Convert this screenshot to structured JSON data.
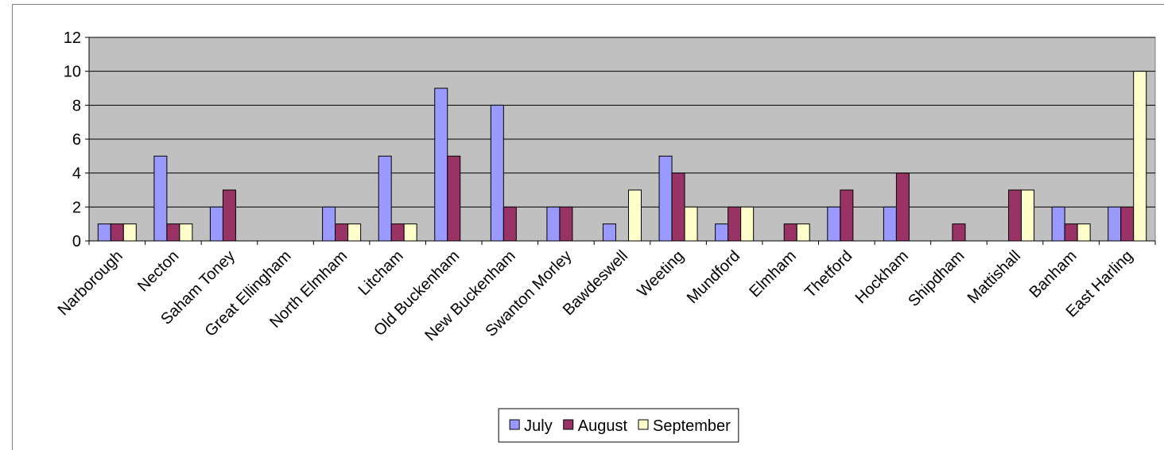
{
  "chart_data": {
    "type": "bar",
    "categories": [
      "Narborough",
      "Necton",
      "Saham Toney",
      "Great Ellingham",
      "North Elmham",
      "Litcham",
      "Old Buckenham",
      "New Buckenham",
      "Swanton Morley",
      "Bawdeswell",
      "Weeting",
      "Mundford",
      "Elmham",
      "Thetford",
      "Hockham",
      "Shipdham",
      "Mattishall",
      "Banham",
      "East Harling"
    ],
    "series": [
      {
        "name": "July",
        "color": "#9999ff",
        "values": [
          1,
          5,
          2,
          0,
          2,
          5,
          9,
          8,
          2,
          1,
          5,
          1,
          0,
          2,
          2,
          0,
          0,
          2,
          2
        ]
      },
      {
        "name": "August",
        "color": "#993366",
        "values": [
          1,
          1,
          3,
          0,
          1,
          1,
          5,
          2,
          2,
          0,
          4,
          2,
          1,
          3,
          4,
          1,
          3,
          1,
          2
        ]
      },
      {
        "name": "September",
        "color": "#ffffcc",
        "values": [
          1,
          1,
          0,
          0,
          1,
          1,
          0,
          0,
          0,
          3,
          2,
          2,
          1,
          0,
          0,
          0,
          3,
          1,
          10
        ]
      }
    ],
    "ylim": [
      0,
      12
    ],
    "yticks": [
      0,
      2,
      4,
      6,
      8,
      10,
      12
    ],
    "grid": true,
    "legend": "bottom"
  }
}
